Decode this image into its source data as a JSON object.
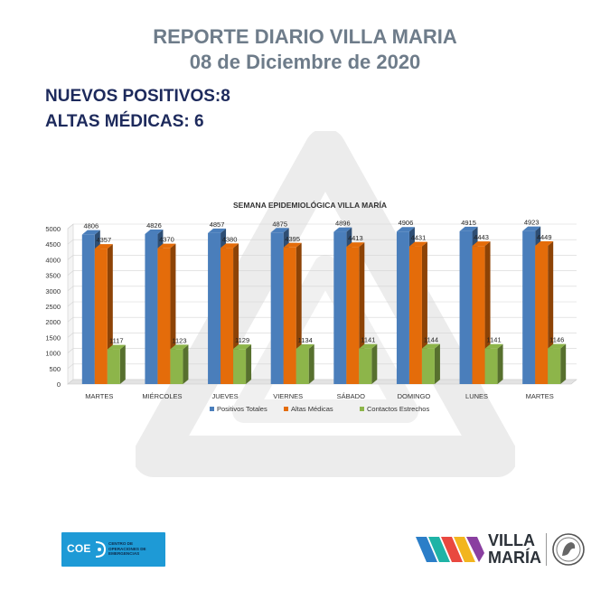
{
  "header": {
    "title": "REPORTE DIARIO VILLA MARIA",
    "date": "08 de Diciembre de 2020"
  },
  "stats": {
    "nuevos_positivos": "NUEVOS POSITIVOS:8",
    "altas_medicas": "ALTAS MÉDICAS: 6"
  },
  "logos": {
    "coe_acronym": "COE",
    "coe_text": "CENTRO DE OPERACIONES DE EMERGENCIAS",
    "villa": "VILLA",
    "maria": "MARÍA"
  },
  "colors": {
    "positivos": "#4a7ebb",
    "altas": "#e46c0a",
    "contactos": "#8db54a",
    "title_gray": "#6e7c8a",
    "stat_navy": "#1d2a5c",
    "coe_blue": "#1e9ad6"
  },
  "chart_data": {
    "type": "bar",
    "title": "SEMANA EPIDEMIOLÓGICA VILLA MARÍA",
    "categories": [
      "MARTES",
      "MIÉRCOLES",
      "JUEVES",
      "VIERNES",
      "SÁBADO",
      "DOMINGO",
      "LUNES",
      "MARTES"
    ],
    "series": [
      {
        "name": "Positivos Totales",
        "values": [
          4806,
          4826,
          4857,
          4875,
          4896,
          4906,
          4915,
          4923
        ],
        "color": "#4a7ebb"
      },
      {
        "name": "Altas Médicas",
        "values": [
          4357,
          4370,
          4380,
          4395,
          4413,
          4431,
          4443,
          4449
        ],
        "color": "#e46c0a"
      },
      {
        "name": "Contactos Estrechos",
        "values": [
          1117,
          1123,
          1129,
          1134,
          1141,
          1144,
          1141,
          1146
        ],
        "color": "#8db54a"
      }
    ],
    "ylim": [
      0,
      5000
    ],
    "yticks": [
      0,
      500,
      1000,
      1500,
      2000,
      2500,
      3000,
      3500,
      4000,
      4500,
      5000
    ],
    "grid": true,
    "legend": "bottom"
  }
}
